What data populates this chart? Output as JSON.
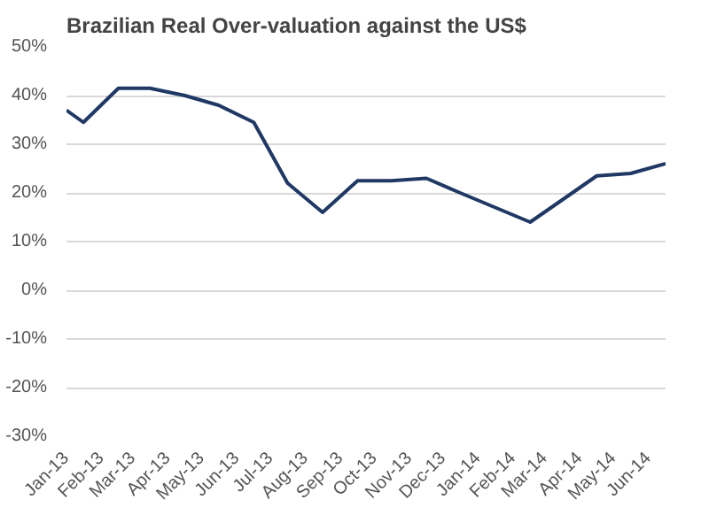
{
  "chart_data": {
    "type": "line",
    "title": "Brazilian Real Over-valuation  against the US$",
    "x": [
      "2013-01-01",
      "2013-01-16",
      "2013-02-16",
      "2013-03-16",
      "2013-04-16",
      "2013-05-16",
      "2013-06-16",
      "2013-07-16",
      "2013-08-16",
      "2013-09-16",
      "2013-10-16",
      "2013-11-16",
      "2013-12-16",
      "2014-01-16",
      "2014-02-16",
      "2014-03-16",
      "2014-04-16",
      "2014-05-16",
      "2014-06-16"
    ],
    "series": [
      {
        "color": "#1f3864",
        "values": [
          37,
          34.5,
          41.5,
          41.5,
          40,
          38,
          34.5,
          22,
          16,
          22.5,
          22.5,
          23,
          20,
          17,
          14,
          18.5,
          23.5,
          24,
          26
        ]
      }
    ],
    "xlim": [
      "2013-01-01",
      "2014-06-16"
    ],
    "xticks": [
      {
        "value": "2013-01-01",
        "label": "Jan-13"
      },
      {
        "value": "2013-02-01",
        "label": "Feb-13"
      },
      {
        "value": "2013-03-01",
        "label": "Mar-13"
      },
      {
        "value": "2013-04-01",
        "label": "Apr-13"
      },
      {
        "value": "2013-05-01",
        "label": "May-13"
      },
      {
        "value": "2013-06-01",
        "label": "Jun-13"
      },
      {
        "value": "2013-07-01",
        "label": "Jul-13"
      },
      {
        "value": "2013-08-01",
        "label": "Aug-13"
      },
      {
        "value": "2013-09-01",
        "label": "Sep-13"
      },
      {
        "value": "2013-10-01",
        "label": "Oct-13"
      },
      {
        "value": "2013-11-01",
        "label": "Nov-13"
      },
      {
        "value": "2013-12-01",
        "label": "Dec-13"
      },
      {
        "value": "2014-01-01",
        "label": "Jan-14"
      },
      {
        "value": "2014-02-01",
        "label": "Feb-14"
      },
      {
        "value": "2014-03-01",
        "label": "Mar-14"
      },
      {
        "value": "2014-04-01",
        "label": "Apr-14"
      },
      {
        "value": "2014-05-01",
        "label": "May-14"
      },
      {
        "value": "2014-06-01",
        "label": "Jun-14"
      }
    ],
    "ylim": [
      -30,
      50
    ],
    "yticks": [
      {
        "value": -30,
        "label": "-30%"
      },
      {
        "value": -20,
        "label": "-20%"
      },
      {
        "value": -10,
        "label": "-10%"
      },
      {
        "value": 0,
        "label": "0%"
      },
      {
        "value": 10,
        "label": "10%"
      },
      {
        "value": 20,
        "label": "20%"
      },
      {
        "value": 30,
        "label": "30%"
      },
      {
        "value": 40,
        "label": "40%"
      },
      {
        "value": 50,
        "label": "50%"
      }
    ],
    "grid": "y",
    "line_style": "solid"
  }
}
